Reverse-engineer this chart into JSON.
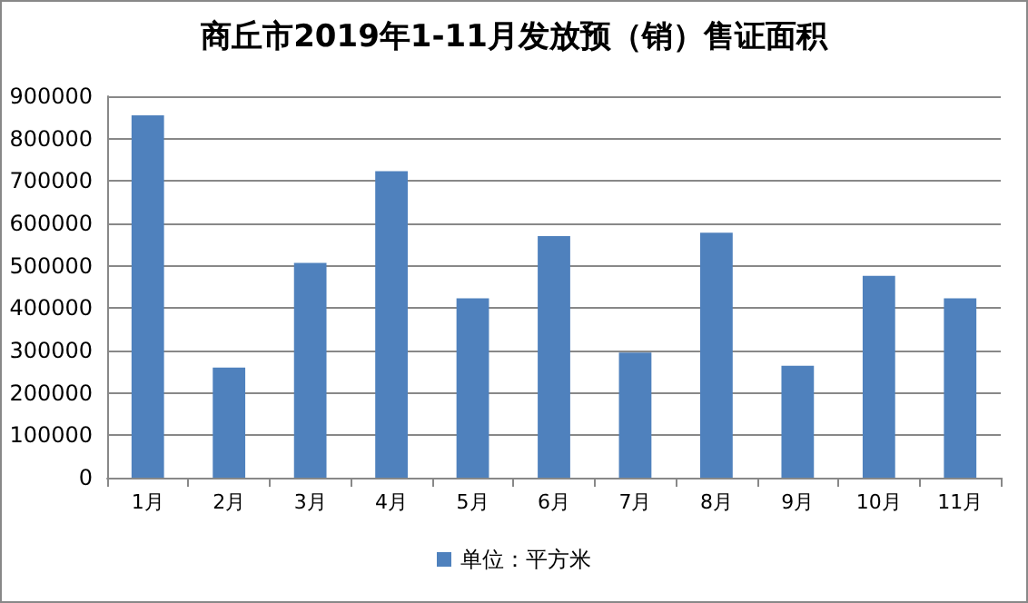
{
  "chart_data": {
    "type": "bar",
    "title": "商丘市2019年1-11月发放预（销）售证面积",
    "categories": [
      "1月",
      "2月",
      "3月",
      "4月",
      "5月",
      "6月",
      "7月",
      "8月",
      "9月",
      "10月",
      "11月"
    ],
    "series": [
      {
        "name": "单位：平方米",
        "color": "#4f81bd",
        "values": [
          855000,
          260000,
          507000,
          723000,
          423000,
          570000,
          295000,
          578000,
          264000,
          476000,
          423000
        ]
      }
    ],
    "ylim": [
      0,
      900000
    ],
    "yticks": [
      0,
      100000,
      200000,
      300000,
      400000,
      500000,
      600000,
      700000,
      800000,
      900000
    ],
    "grid": "y",
    "legend": "bottom"
  }
}
